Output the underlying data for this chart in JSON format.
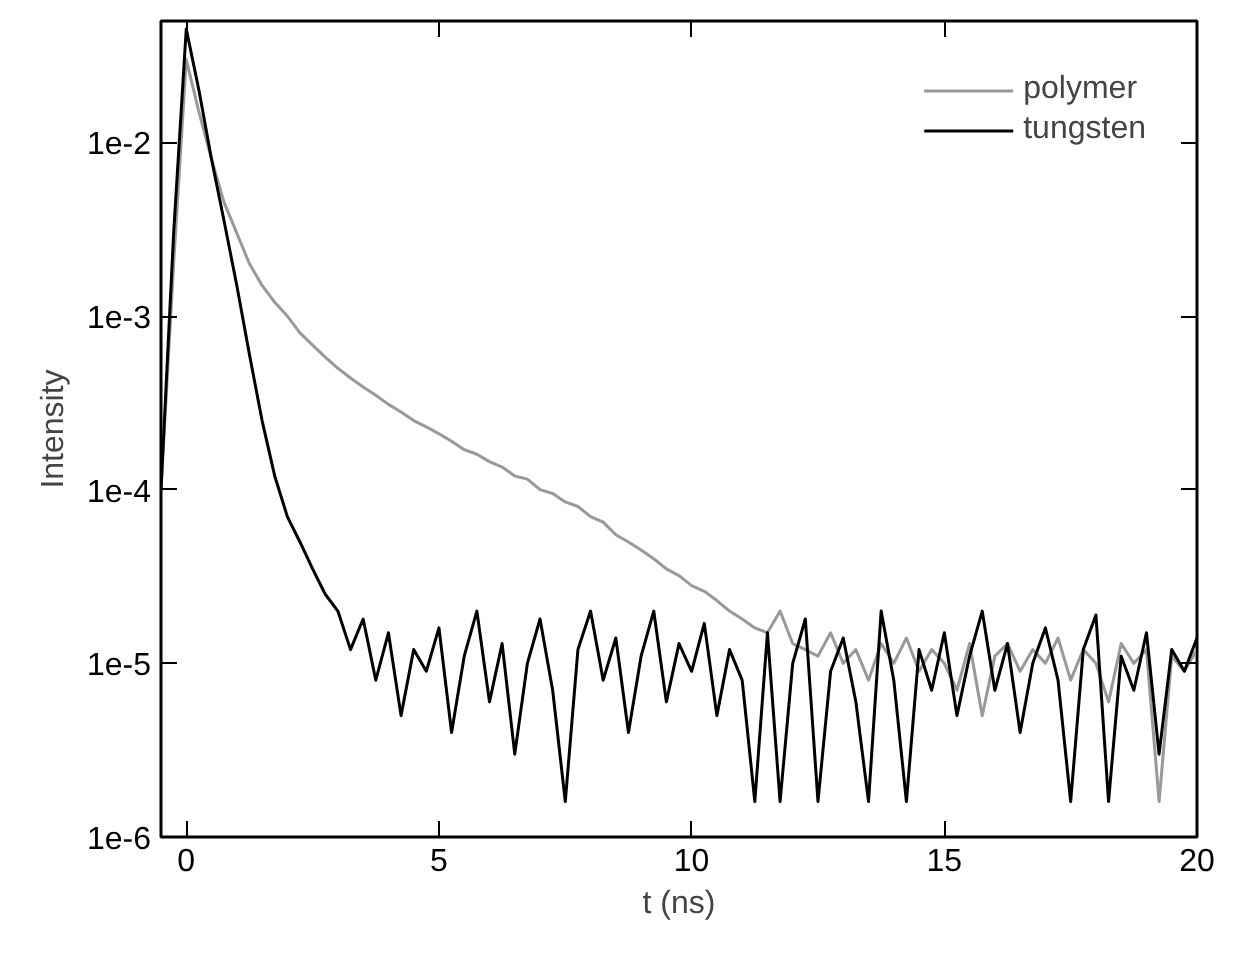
{
  "chart_data": {
    "type": "line",
    "xlabel": "t (ns)",
    "ylabel": "Intensity",
    "log": "y",
    "grid": false,
    "legend": "top right",
    "line_style": "solid",
    "marker": "none",
    "xlim": [
      -0.5,
      20
    ],
    "xticks": [
      0,
      5,
      10,
      15,
      20
    ],
    "ylim": [
      1e-06,
      0.05
    ],
    "yticks": [
      {
        "value": 1e-06,
        "label": "1e-6"
      },
      {
        "value": 1e-05,
        "label": "1e-5"
      },
      {
        "value": 0.0001,
        "label": "1e-4"
      },
      {
        "value": 0.001,
        "label": "1e-3"
      },
      {
        "value": 0.01,
        "label": "1e-2"
      }
    ],
    "x": [
      -0.5,
      -0.25,
      0,
      0.25,
      0.5,
      0.75,
      1,
      1.25,
      1.5,
      1.75,
      2,
      2.25,
      2.5,
      2.75,
      3,
      3.25,
      3.5,
      3.75,
      4,
      4.25,
      4.5,
      4.75,
      5,
      5.25,
      5.5,
      5.75,
      6,
      6.25,
      6.5,
      6.75,
      7,
      7.25,
      7.5,
      7.75,
      8,
      8.25,
      8.5,
      8.75,
      9,
      9.25,
      9.5,
      9.75,
      10,
      10.25,
      10.5,
      10.75,
      11,
      11.25,
      11.5,
      11.75,
      12,
      12.25,
      12.5,
      12.75,
      13,
      13.25,
      13.5,
      13.75,
      14,
      14.25,
      14.5,
      14.75,
      15,
      15.25,
      15.5,
      15.75,
      16,
      16.25,
      16.5,
      16.75,
      17,
      17.25,
      17.5,
      17.75,
      18,
      18.25,
      18.5,
      18.75,
      19,
      19.25,
      19.5,
      19.75,
      20
    ],
    "series": [
      {
        "name": "polymer",
        "color": "#999999",
        "values": [
          0.0001,
          0.002,
          0.03,
          0.015,
          0.008,
          0.0045,
          0.003,
          0.002,
          0.0015,
          0.0012,
          0.001,
          0.0008,
          0.00068,
          0.00058,
          0.0005,
          0.00044,
          0.00039,
          0.00035,
          0.00031,
          0.00028,
          0.00025,
          0.00023,
          0.00021,
          0.00019,
          0.00017,
          0.00016,
          0.000145,
          0.000135,
          0.00012,
          0.000115,
          0.0001,
          9.5e-05,
          8.5e-05,
          8e-05,
          7e-05,
          6.5e-05,
          5.5e-05,
          5e-05,
          4.5e-05,
          4e-05,
          3.5e-05,
          3.2e-05,
          2.8e-05,
          2.6e-05,
          2.3e-05,
          2e-05,
          1.8e-05,
          1.6e-05,
          1.5e-05,
          2e-05,
          1.3e-05,
          1.2e-05,
          1.1e-05,
          1.5e-05,
          1e-05,
          1.2e-05,
          8e-06,
          1.3e-05,
          1e-05,
          1.4e-05,
          9e-06,
          1.2e-05,
          1e-05,
          7e-06,
          1.3e-05,
          5e-06,
          1.1e-05,
          1.3e-05,
          9e-06,
          1.2e-05,
          1e-05,
          1.4e-05,
          8e-06,
          1.2e-05,
          1e-05,
          6e-06,
          1.3e-05,
          1e-05,
          1.2e-05,
          1.6e-06,
          1.1e-05,
          9e-06,
          1.2e-05
        ]
      },
      {
        "name": "tungsten",
        "color": "#000000",
        "values": [
          0.0001,
          0.003,
          0.045,
          0.02,
          0.008,
          0.0035,
          0.0015,
          0.0006,
          0.00025,
          0.00012,
          7e-05,
          5e-05,
          3.5e-05,
          2.5e-05,
          2e-05,
          1.2e-05,
          1.8e-05,
          8e-06,
          1.5e-05,
          5e-06,
          1.2e-05,
          9e-06,
          1.6e-05,
          4e-06,
          1.1e-05,
          2e-05,
          6e-06,
          1.3e-05,
          3e-06,
          1e-05,
          1.8e-05,
          7e-06,
          1.6e-06,
          1.2e-05,
          2e-05,
          8e-06,
          1.4e-05,
          4e-06,
          1.1e-05,
          2e-05,
          6e-06,
          1.3e-05,
          9e-06,
          1.7e-05,
          5e-06,
          1.2e-05,
          8e-06,
          1.6e-06,
          1.5e-05,
          1.6e-06,
          1e-05,
          1.8e-05,
          1.6e-06,
          9e-06,
          1.4e-05,
          6e-06,
          1.6e-06,
          2e-05,
          8e-06,
          1.6e-06,
          1.2e-05,
          7e-06,
          1.5e-05,
          5e-06,
          1.1e-05,
          2e-05,
          7e-06,
          1.3e-05,
          4e-06,
          1e-05,
          1.6e-05,
          8e-06,
          1.6e-06,
          1.2e-05,
          1.9e-05,
          1.6e-06,
          1.1e-05,
          7e-06,
          1.5e-05,
          3e-06,
          1.2e-05,
          9e-06,
          1.4e-05
        ]
      }
    ]
  }
}
